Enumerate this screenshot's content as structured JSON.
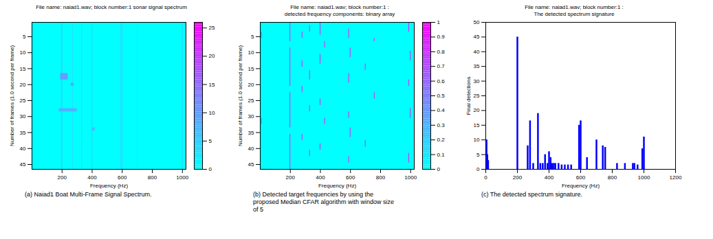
{
  "chart_data": [
    {
      "type": "heatmap",
      "title": "File name: naiad1.wav; block number:1 sonar signal spectrum",
      "xlabel": "Frequency (Hz)",
      "ylabel": "Number of frames (1.0 second per frame)",
      "xlim": [
        0,
        1024
      ],
      "ylim": [
        0.5,
        46.5
      ],
      "xticks": [
        200,
        400,
        600,
        800,
        1000
      ],
      "yticks": [
        5,
        10,
        15,
        20,
        25,
        30,
        35,
        40,
        45
      ],
      "background_value": 0,
      "cells": [
        [
          198,
          203,
          0.5,
          46.5,
          7
        ],
        [
          270,
          274,
          0.5,
          46.5,
          4
        ],
        [
          330,
          334,
          0.5,
          46.5,
          4
        ],
        [
          398,
          403,
          0.5,
          46.5,
          5
        ],
        [
          590,
          595,
          0.5,
          46.5,
          4
        ],
        [
          600,
          604,
          0.5,
          46.5,
          5
        ],
        [
          700,
          703,
          0.5,
          46.5,
          3
        ],
        [
          998,
          1003,
          0.5,
          46.5,
          5
        ],
        [
          190,
          240,
          16.5,
          18.5,
          10
        ],
        [
          180,
          300,
          27.5,
          28.5,
          8
        ],
        [
          260,
          280,
          19.5,
          20.5,
          9
        ],
        [
          400,
          420,
          33.5,
          34.5,
          7
        ]
      ],
      "colorbar": {
        "range": [
          0,
          26
        ],
        "ticks": [
          0,
          5,
          10,
          15,
          20,
          25
        ],
        "colors": [
          "#00ffff",
          "#ff00ff"
        ]
      },
      "caption": "(a) Naiad1 Boat Multi-Frame Signal Spectrum."
    },
    {
      "type": "heatmap",
      "title": "File name: naiad1.wav; block number:1 :\ndetected frequency components: binary array",
      "xlabel": "Frequency (Hz)",
      "ylabel": "Number of frames (1.0 second per frame)",
      "xlim": [
        0,
        1024
      ],
      "ylim": [
        0.5,
        46.5
      ],
      "xticks": [
        200,
        400,
        600,
        800,
        1000
      ],
      "yticks": [
        5,
        10,
        15,
        20,
        25,
        30,
        35,
        40,
        45
      ],
      "background_value": 0,
      "cells": [
        [
          198,
          202,
          0.5,
          6.5,
          1
        ],
        [
          198,
          202,
          8.5,
          20.5,
          1
        ],
        [
          198,
          202,
          22.5,
          33.5,
          1
        ],
        [
          198,
          202,
          35.5,
          46.5,
          1
        ],
        [
          278,
          282,
          3.5,
          5.5,
          1
        ],
        [
          278,
          282,
          12.5,
          14.5,
          1
        ],
        [
          278,
          282,
          20.5,
          22.5,
          1
        ],
        [
          278,
          282,
          35.5,
          37.5,
          1
        ],
        [
          328,
          332,
          1.5,
          3.5,
          1
        ],
        [
          328,
          332,
          15.5,
          18.5,
          1
        ],
        [
          328,
          332,
          26.5,
          28.5,
          1
        ],
        [
          328,
          332,
          40.5,
          42.5,
          1
        ],
        [
          398,
          402,
          0.5,
          4.5,
          1
        ],
        [
          398,
          402,
          10.5,
          13.5,
          1
        ],
        [
          398,
          402,
          24.5,
          26.5,
          1
        ],
        [
          398,
          402,
          38.5,
          40.5,
          1
        ],
        [
          428,
          432,
          6.5,
          8.5,
          1
        ],
        [
          428,
          432,
          30.5,
          32.5,
          1
        ],
        [
          588,
          592,
          2.5,
          5.5,
          1
        ],
        [
          588,
          592,
          16.5,
          19.5,
          1
        ],
        [
          588,
          592,
          28.5,
          30.5,
          1
        ],
        [
          588,
          592,
          42.5,
          44.5,
          1
        ],
        [
          598,
          602,
          8.5,
          11.5,
          1
        ],
        [
          598,
          602,
          33.5,
          36.5,
          1
        ],
        [
          698,
          702,
          13.5,
          15.5,
          1
        ],
        [
          698,
          702,
          37.5,
          39.5,
          1
        ],
        [
          758,
          762,
          5.5,
          6.5,
          1
        ],
        [
          758,
          762,
          22.5,
          24.5,
          1
        ],
        [
          988,
          992,
          0.5,
          3.5,
          1
        ],
        [
          988,
          992,
          18.5,
          20.5,
          1
        ],
        [
          988,
          992,
          41.5,
          44.5,
          1
        ],
        [
          998,
          1002,
          9.5,
          12.5,
          1
        ],
        [
          998,
          1002,
          27.5,
          30.5,
          1
        ],
        [
          8,
          12,
          3.5,
          5.5,
          1
        ],
        [
          8,
          12,
          30.5,
          32.5,
          1
        ]
      ],
      "colorbar": {
        "range": [
          0,
          1
        ],
        "ticks": [
          0,
          0.1,
          0.2,
          0.3,
          0.4,
          0.5,
          0.6,
          0.7,
          0.8,
          0.9,
          1
        ],
        "colors": [
          "#00ffff",
          "#ff00ff"
        ]
      },
      "caption": "(b) Detected target frequencies by using the proposed Median CFAR algorithm with window size of 5"
    },
    {
      "type": "bar",
      "title": "File name: naiad1.wav; block number:1 :\nThe detected spectrum signature",
      "xlabel": "Frequency (Hz)",
      "ylabel": "Final detections",
      "xlim": [
        0,
        1200
      ],
      "ylim": [
        0,
        50
      ],
      "xticks": [
        0,
        200,
        400,
        600,
        800,
        1000,
        1200
      ],
      "yticks": [
        0,
        5,
        10,
        15,
        20,
        25,
        30,
        35,
        40,
        45,
        50
      ],
      "x": [
        5,
        10,
        15,
        200,
        265,
        280,
        300,
        330,
        345,
        360,
        375,
        390,
        400,
        410,
        420,
        430,
        440,
        460,
        480,
        500,
        520,
        540,
        590,
        600,
        640,
        700,
        740,
        755,
        830,
        880,
        930,
        940,
        960,
        990,
        1000
      ],
      "values": [
        10,
        5,
        3,
        45,
        8,
        16.5,
        2,
        19,
        2,
        2,
        5,
        2,
        6,
        4,
        2,
        2,
        2,
        2,
        1.5,
        1.5,
        1.5,
        1.5,
        15,
        16.5,
        4,
        10,
        8,
        7.5,
        2,
        2,
        2,
        2,
        1.5,
        7,
        11
      ],
      "color": "#0000ff",
      "caption": "(c) The detected spectrum signature."
    }
  ]
}
